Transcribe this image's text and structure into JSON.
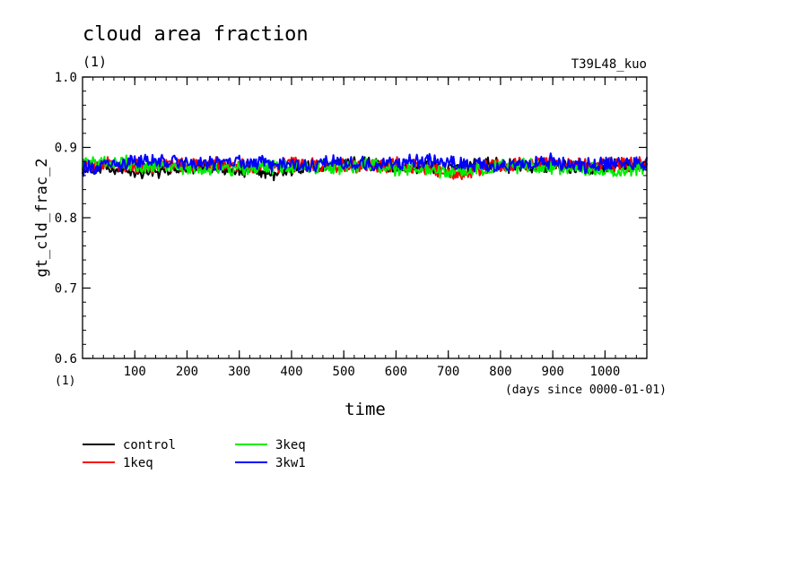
{
  "chart_data": {
    "type": "line",
    "title": "cloud area fraction",
    "title_units": "(1)",
    "experiment": "T39L48_kuo",
    "xlabel": "time",
    "xunits": "(days since 0000-01-01)",
    "ylabel": "gt_cld_frac_2",
    "yunits": "(1)",
    "xlim": [
      0,
      1080
    ],
    "ylim": [
      0.6,
      1.0
    ],
    "xticks": [
      100,
      200,
      300,
      400,
      500,
      600,
      700,
      800,
      900,
      1000
    ],
    "xtick_labels": [
      "100",
      "200",
      "300",
      "400",
      "500",
      "600",
      "700",
      "800",
      "900",
      "1000"
    ],
    "yticks": [
      0.6,
      0.7,
      0.8,
      0.9,
      1.0
    ],
    "ytick_labels": [
      "0.6",
      "0.7",
      "0.8",
      "0.9",
      "1.0"
    ],
    "grid": false,
    "legend_position": "below",
    "x": [
      0,
      60,
      120,
      180,
      240,
      300,
      360,
      420,
      480,
      540,
      600,
      660,
      720,
      780,
      840,
      900,
      960,
      1020,
      1080
    ],
    "series": [
      {
        "name": "control",
        "color": "#000000",
        "values": [
          0.872,
          0.868,
          0.866,
          0.87,
          0.873,
          0.869,
          0.864,
          0.87,
          0.874,
          0.878,
          0.872,
          0.874,
          0.87,
          0.876,
          0.873,
          0.875,
          0.872,
          0.874,
          0.873
        ]
      },
      {
        "name": "1keq",
        "color": "#ff0000",
        "values": [
          0.874,
          0.876,
          0.873,
          0.875,
          0.877,
          0.874,
          0.873,
          0.876,
          0.874,
          0.872,
          0.875,
          0.87,
          0.862,
          0.873,
          0.876,
          0.878,
          0.874,
          0.875,
          0.876
        ]
      },
      {
        "name": "3keq",
        "color": "#00ee00",
        "values": [
          0.878,
          0.88,
          0.873,
          0.871,
          0.869,
          0.87,
          0.872,
          0.873,
          0.872,
          0.874,
          0.87,
          0.869,
          0.866,
          0.871,
          0.874,
          0.872,
          0.868,
          0.867,
          0.87
        ]
      },
      {
        "name": "3kw1",
        "color": "#0000ff",
        "values": [
          0.868,
          0.876,
          0.88,
          0.878,
          0.877,
          0.879,
          0.876,
          0.875,
          0.878,
          0.877,
          0.876,
          0.882,
          0.878,
          0.873,
          0.876,
          0.88,
          0.875,
          0.878,
          0.877
        ]
      }
    ]
  }
}
